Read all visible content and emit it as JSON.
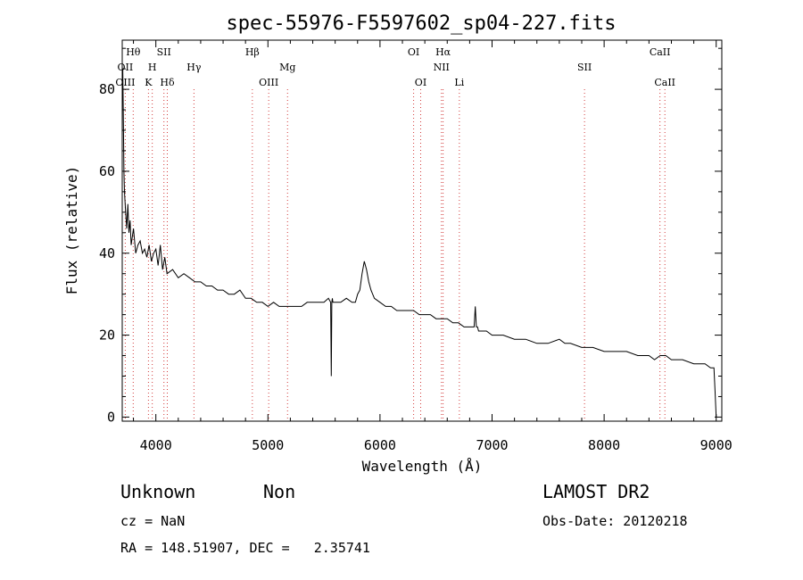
{
  "chart_data": {
    "type": "line",
    "title": "spec-55976-F5597602_sp04-227.fits",
    "xlabel": "Wavelength (Å)",
    "ylabel": "Flux (relative)",
    "xlim": [
      3700,
      9050
    ],
    "ylim": [
      -1,
      92
    ],
    "x_ticks": [
      4000,
      5000,
      6000,
      7000,
      8000,
      9000
    ],
    "y_ticks": [
      0,
      20,
      40,
      60,
      80
    ],
    "grid": false,
    "series": [
      {
        "x": [
          3700,
          3705,
          3710,
          3715,
          3720,
          3730,
          3740,
          3750,
          3760,
          3770,
          3780,
          3800,
          3820,
          3840,
          3860,
          3880,
          3900,
          3920,
          3940,
          3960,
          3980,
          4000,
          4020,
          4040,
          4060,
          4080,
          4100,
          4150,
          4200,
          4250,
          4300,
          4350,
          4400,
          4450,
          4500,
          4550,
          4600,
          4650,
          4700,
          4750,
          4800,
          4850,
          4900,
          4950,
          5000,
          5050,
          5100,
          5150,
          5200,
          5250,
          5300,
          5350,
          5400,
          5450,
          5500,
          5540,
          5560,
          5565,
          5570,
          5575,
          5580,
          5600,
          5650,
          5700,
          5750,
          5780,
          5800,
          5820,
          5840,
          5860,
          5880,
          5900,
          5920,
          5950,
          6000,
          6050,
          6100,
          6150,
          6200,
          6250,
          6300,
          6350,
          6400,
          6450,
          6500,
          6550,
          6600,
          6650,
          6700,
          6750,
          6800,
          6840,
          6850,
          6860,
          6870,
          6880,
          6900,
          6950,
          7000,
          7100,
          7200,
          7300,
          7400,
          7500,
          7600,
          7650,
          7700,
          7800,
          7900,
          8000,
          8100,
          8200,
          8300,
          8400,
          8450,
          8500,
          8550,
          8600,
          8700,
          8800,
          8900,
          8950,
          8980,
          8990,
          9000
        ],
        "y": [
          78,
          85,
          72,
          60,
          55,
          50,
          46,
          52,
          45,
          48,
          42,
          46,
          40,
          42,
          43,
          40,
          41,
          39,
          42,
          38,
          40,
          41,
          37,
          42,
          36,
          39,
          35,
          36,
          34,
          35,
          34,
          33,
          33,
          32,
          32,
          31,
          31,
          30,
          30,
          31,
          29,
          29,
          28,
          28,
          27,
          28,
          27,
          27,
          27,
          27,
          27,
          28,
          28,
          28,
          28,
          29,
          28,
          10,
          28,
          29,
          28,
          28,
          28,
          29,
          28,
          28,
          30,
          31,
          35,
          38,
          36,
          33,
          31,
          29,
          28,
          27,
          27,
          26,
          26,
          26,
          26,
          25,
          25,
          25,
          24,
          24,
          24,
          23,
          23,
          22,
          22,
          22,
          27,
          22,
          22,
          21,
          21,
          21,
          20,
          20,
          19,
          19,
          18,
          18,
          19,
          18,
          18,
          17,
          17,
          16,
          16,
          16,
          15,
          15,
          14,
          15,
          15,
          14,
          14,
          13,
          13,
          12,
          12,
          6,
          0
        ]
      }
    ],
    "line_markers": [
      {
        "label": "Hθ",
        "x": 3798,
        "row": 1
      },
      {
        "label": "OII",
        "x": 3727,
        "row": 2
      },
      {
        "label": "OIII",
        "x": 3727,
        "row": 3
      },
      {
        "label": "SII",
        "x": 4072,
        "row": 1
      },
      {
        "label": "H",
        "x": 3968,
        "row": 2
      },
      {
        "label": "K",
        "x": 3934,
        "row": 3
      },
      {
        "label": "Hδ",
        "x": 4102,
        "row": 3
      },
      {
        "label": "Hγ",
        "x": 4340,
        "row": 2
      },
      {
        "label": "Hβ",
        "x": 4861,
        "row": 1
      },
      {
        "label": "OIII",
        "x": 5007,
        "row": 3
      },
      {
        "label": "Mg",
        "x": 5175,
        "row": 2
      },
      {
        "label": "OI",
        "x": 6300,
        "row": 1
      },
      {
        "label": "OI",
        "x": 6363,
        "row": 3
      },
      {
        "label": "Hα",
        "x": 6563,
        "row": 1
      },
      {
        "label": "NII",
        "x": 6548,
        "row": 2
      },
      {
        "label": "Li",
        "x": 6708,
        "row": 3
      },
      {
        "label": "SII",
        "x": 7825,
        "row": 2
      },
      {
        "label": "CaII",
        "x": 8498,
        "row": 1
      },
      {
        "label": "CaII",
        "x": 8542,
        "row": 3
      }
    ]
  },
  "info": {
    "class": "Unknown",
    "subclass": "Non",
    "survey": "LAMOST DR2",
    "cz": "cz = NaN",
    "obs_date": "Obs-Date: 20120218",
    "coords": "RA = 148.51907, DEC =   2.35741"
  }
}
